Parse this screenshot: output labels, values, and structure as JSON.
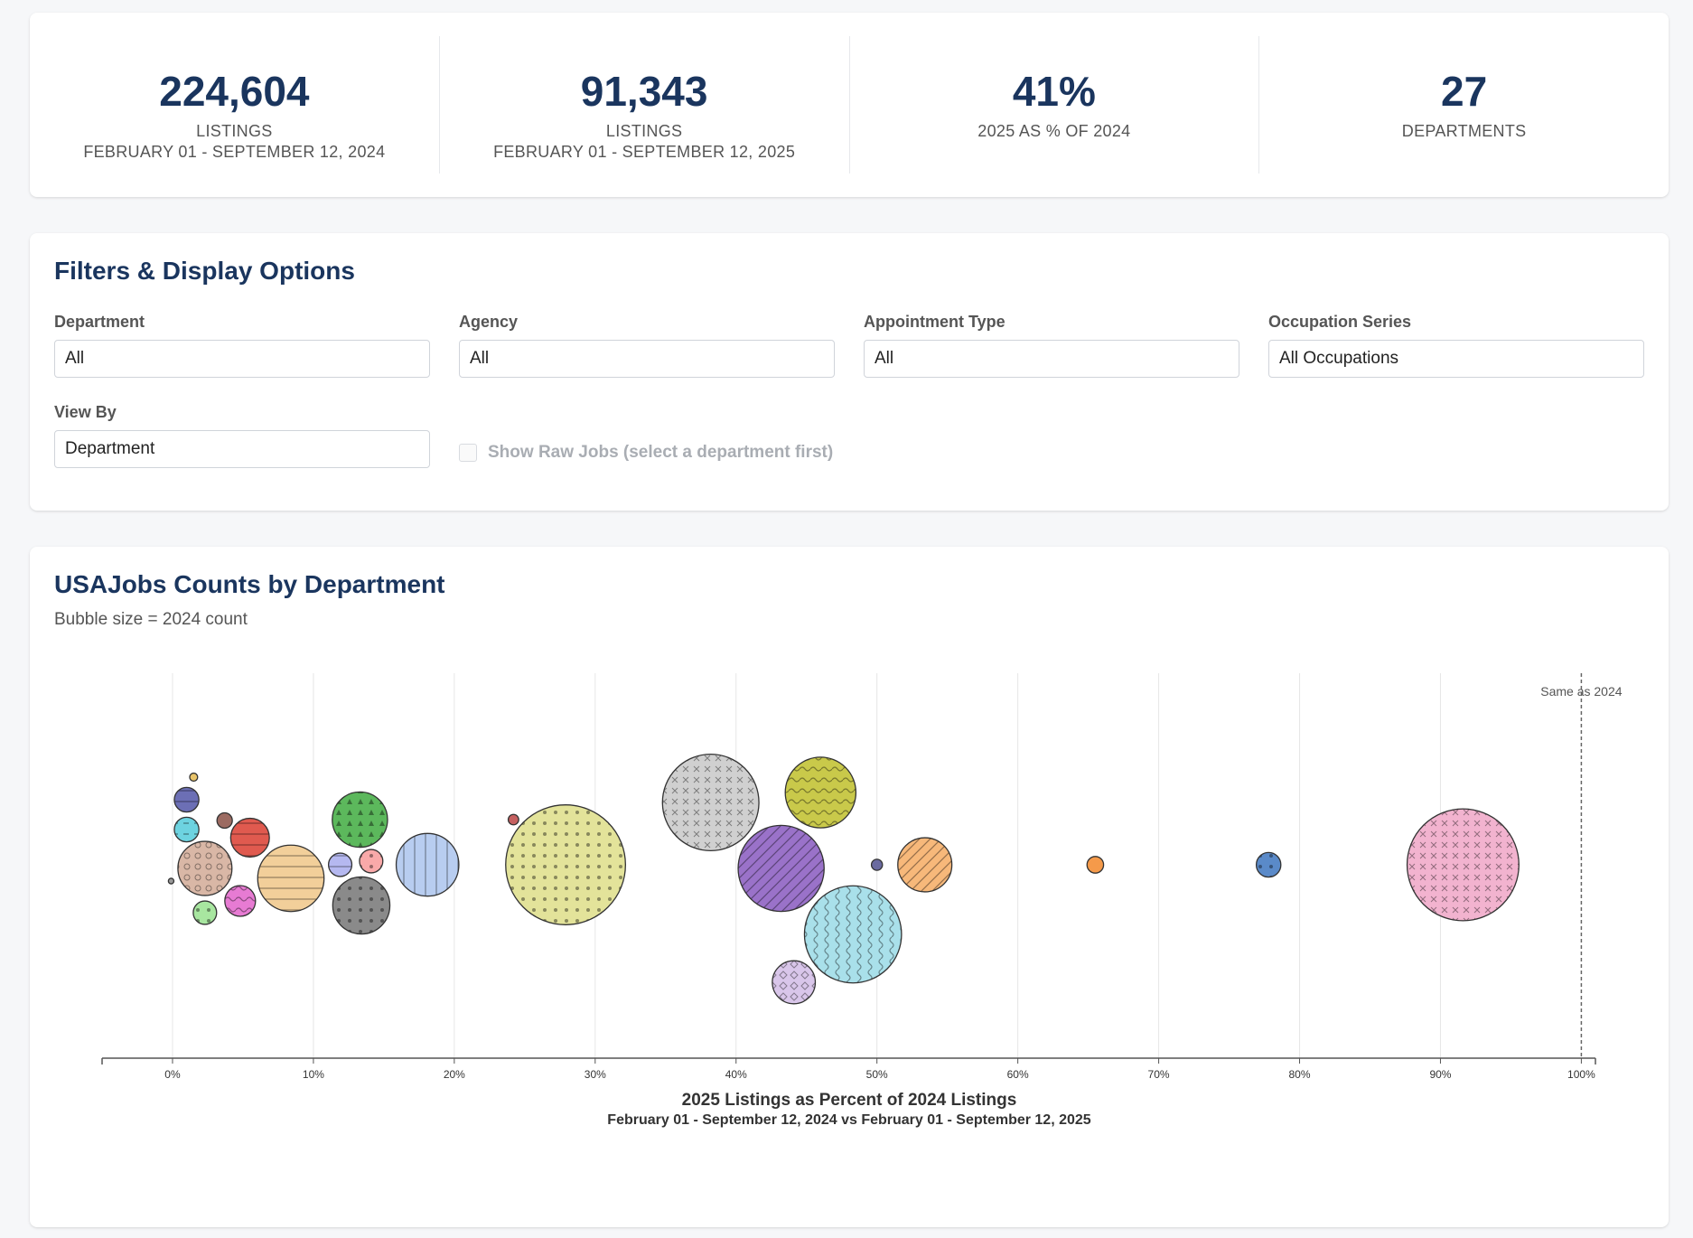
{
  "stats": [
    {
      "value": "224,604",
      "label": "LISTINGS",
      "sub": "FEBRUARY 01 - SEPTEMBER 12, 2024"
    },
    {
      "value": "91,343",
      "label": "LISTINGS",
      "sub": "FEBRUARY 01 - SEPTEMBER 12, 2025"
    },
    {
      "value": "41%",
      "label": "2025 AS % OF 2024",
      "sub": ""
    },
    {
      "value": "27",
      "label": "DEPARTMENTS",
      "sub": ""
    }
  ],
  "filters": {
    "title": "Filters & Display Options",
    "department": {
      "label": "Department",
      "value": "All"
    },
    "agency": {
      "label": "Agency",
      "value": "All"
    },
    "appointment_type": {
      "label": "Appointment Type",
      "value": "All"
    },
    "occupation_series": {
      "label": "Occupation Series",
      "value": "All Occupations"
    },
    "view_by": {
      "label": "View By",
      "value": "Department"
    },
    "show_raw_jobs": {
      "label": "Show Raw Jobs (select a department first)",
      "checked": false,
      "disabled": true
    }
  },
  "chart": {
    "title": "USAJobs Counts by Department",
    "subtitle": "Bubble size = 2024 count"
  },
  "chart_data": {
    "type": "scatter",
    "encoding": "bubble",
    "xlabel": "2025 Listings as Percent of 2024 Listings",
    "xsublabel": "February 01 - September 12, 2024 vs February 01 - September 12, 2025",
    "xlim": [
      -5,
      101
    ],
    "xticks": [
      0,
      10,
      20,
      30,
      40,
      50,
      60,
      70,
      80,
      90,
      100
    ],
    "xtick_labels": [
      "0%",
      "10%",
      "20%",
      "30%",
      "40%",
      "50%",
      "60%",
      "70%",
      "80%",
      "90%",
      "100%"
    ],
    "reference_line": {
      "x": 100,
      "label": "Same as 2024"
    },
    "size_metric": "2024 count",
    "points": [
      {
        "x": 1.5,
        "r": 0.13,
        "color": "#e9c46a",
        "pattern": "none"
      },
      {
        "x": 1.0,
        "r": 0.4,
        "color": "#6c6fb5",
        "pattern": "hlines"
      },
      {
        "x": 1.0,
        "r": 0.4,
        "color": "#6dd3e0",
        "pattern": "dashes"
      },
      {
        "x": 3.7,
        "r": 0.25,
        "color": "#9c6b62",
        "pattern": "none"
      },
      {
        "x": 5.5,
        "r": 0.63,
        "color": "#e05a4f",
        "pattern": "hlines"
      },
      {
        "x": 2.3,
        "r": 0.88,
        "color": "#d9b7a6",
        "pattern": "rings"
      },
      {
        "x": -0.1,
        "r": 0.09,
        "color": "#999999",
        "pattern": "none"
      },
      {
        "x": 4.8,
        "r": 0.5,
        "color": "#e77bd3",
        "pattern": "waves"
      },
      {
        "x": 2.3,
        "r": 0.38,
        "color": "#a8e6a0",
        "pattern": "dots"
      },
      {
        "x": 8.4,
        "r": 1.08,
        "color": "#f2cf9a",
        "pattern": "hlines"
      },
      {
        "x": 13.3,
        "r": 0.9,
        "color": "#5cb85c",
        "pattern": "triangles"
      },
      {
        "x": 11.9,
        "r": 0.38,
        "color": "#b5b8f0",
        "pattern": "hlines"
      },
      {
        "x": 14.1,
        "r": 0.38,
        "color": "#f9a9a9",
        "pattern": "dots"
      },
      {
        "x": 13.4,
        "r": 0.93,
        "color": "#8a8a8a",
        "pattern": "dots"
      },
      {
        "x": 18.1,
        "r": 1.02,
        "color": "#b8cdf0",
        "pattern": "vlines"
      },
      {
        "x": 24.2,
        "r": 0.17,
        "color": "#c56060",
        "pattern": "none"
      },
      {
        "x": 27.9,
        "r": 1.95,
        "color": "#e3e39a",
        "pattern": "dots"
      },
      {
        "x": 38.2,
        "r": 1.57,
        "color": "#d0d0d0",
        "pattern": "crosses"
      },
      {
        "x": 46.0,
        "r": 1.15,
        "color": "#c9c94a",
        "pattern": "waves"
      },
      {
        "x": 43.2,
        "r": 1.4,
        "color": "#9a72c9",
        "pattern": "diagonal"
      },
      {
        "x": 50.0,
        "r": 0.18,
        "color": "#6a6aa0",
        "pattern": "none"
      },
      {
        "x": 53.4,
        "r": 0.88,
        "color": "#f7b87a",
        "pattern": "diagonal"
      },
      {
        "x": 48.3,
        "r": 1.58,
        "color": "#a9e0ea",
        "pattern": "vwaves"
      },
      {
        "x": 44.1,
        "r": 0.7,
        "color": "#d9c6ea",
        "pattern": "diamonds"
      },
      {
        "x": 65.5,
        "r": 0.27,
        "color": "#f59a4a",
        "pattern": "none"
      },
      {
        "x": 77.8,
        "r": 0.4,
        "color": "#5a8ac9",
        "pattern": "dots"
      },
      {
        "x": 91.6,
        "r": 1.82,
        "color": "#f2b3cf",
        "pattern": "crosses"
      }
    ]
  }
}
